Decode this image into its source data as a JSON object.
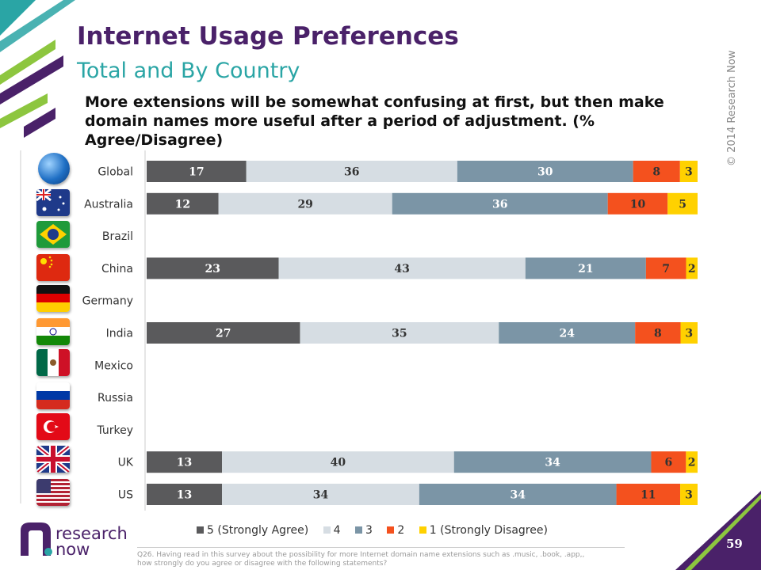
{
  "header": {
    "title": "Internet Usage Preferences",
    "subtitle": "Total and By Country",
    "question": "More extensions will be somewhat confusing at first, but then make domain names more useful after a period of adjustment. (% Agree/Disagree)"
  },
  "copyright": "© 2014 Research Now",
  "footnote": "Q26. Having read in this survey about the possibility for more Internet domain name extensions such as .music, .book, .app,, how strongly do you agree or disagree with the following statements?",
  "logo": {
    "line1": "research",
    "line2": "now"
  },
  "page_number": "59",
  "colors": {
    "purple": "#4a2169",
    "teal": "#2aa5a5",
    "lime": "#8dc63f"
  },
  "chart_data": {
    "type": "bar",
    "orientation": "horizontal",
    "stacked": true,
    "categories": [
      "Global",
      "Australia",
      "Brazil",
      "China",
      "Germany",
      "India",
      "Mexico",
      "Russia",
      "Turkey",
      "UK",
      "US"
    ],
    "series": [
      {
        "name": "5 (Strongly Agree)",
        "color": "#5a5a5c",
        "values": [
          17,
          12,
          null,
          23,
          null,
          27,
          null,
          null,
          null,
          13,
          13
        ]
      },
      {
        "name": "4",
        "color": "#d6dde3",
        "values": [
          36,
          29,
          null,
          43,
          null,
          35,
          null,
          null,
          null,
          40,
          34
        ]
      },
      {
        "name": "3",
        "color": "#7b95a6",
        "values": [
          30,
          36,
          null,
          21,
          null,
          24,
          null,
          null,
          null,
          34,
          34
        ]
      },
      {
        "name": "2",
        "color": "#f4511e",
        "values": [
          8,
          10,
          null,
          7,
          null,
          8,
          null,
          null,
          null,
          6,
          11
        ]
      },
      {
        "name": "1 (Strongly Disagree)",
        "color": "#ffd100",
        "values": [
          3,
          5,
          null,
          2,
          null,
          3,
          null,
          null,
          null,
          2,
          3
        ]
      }
    ],
    "legend_position": "bottom",
    "grid": false
  }
}
